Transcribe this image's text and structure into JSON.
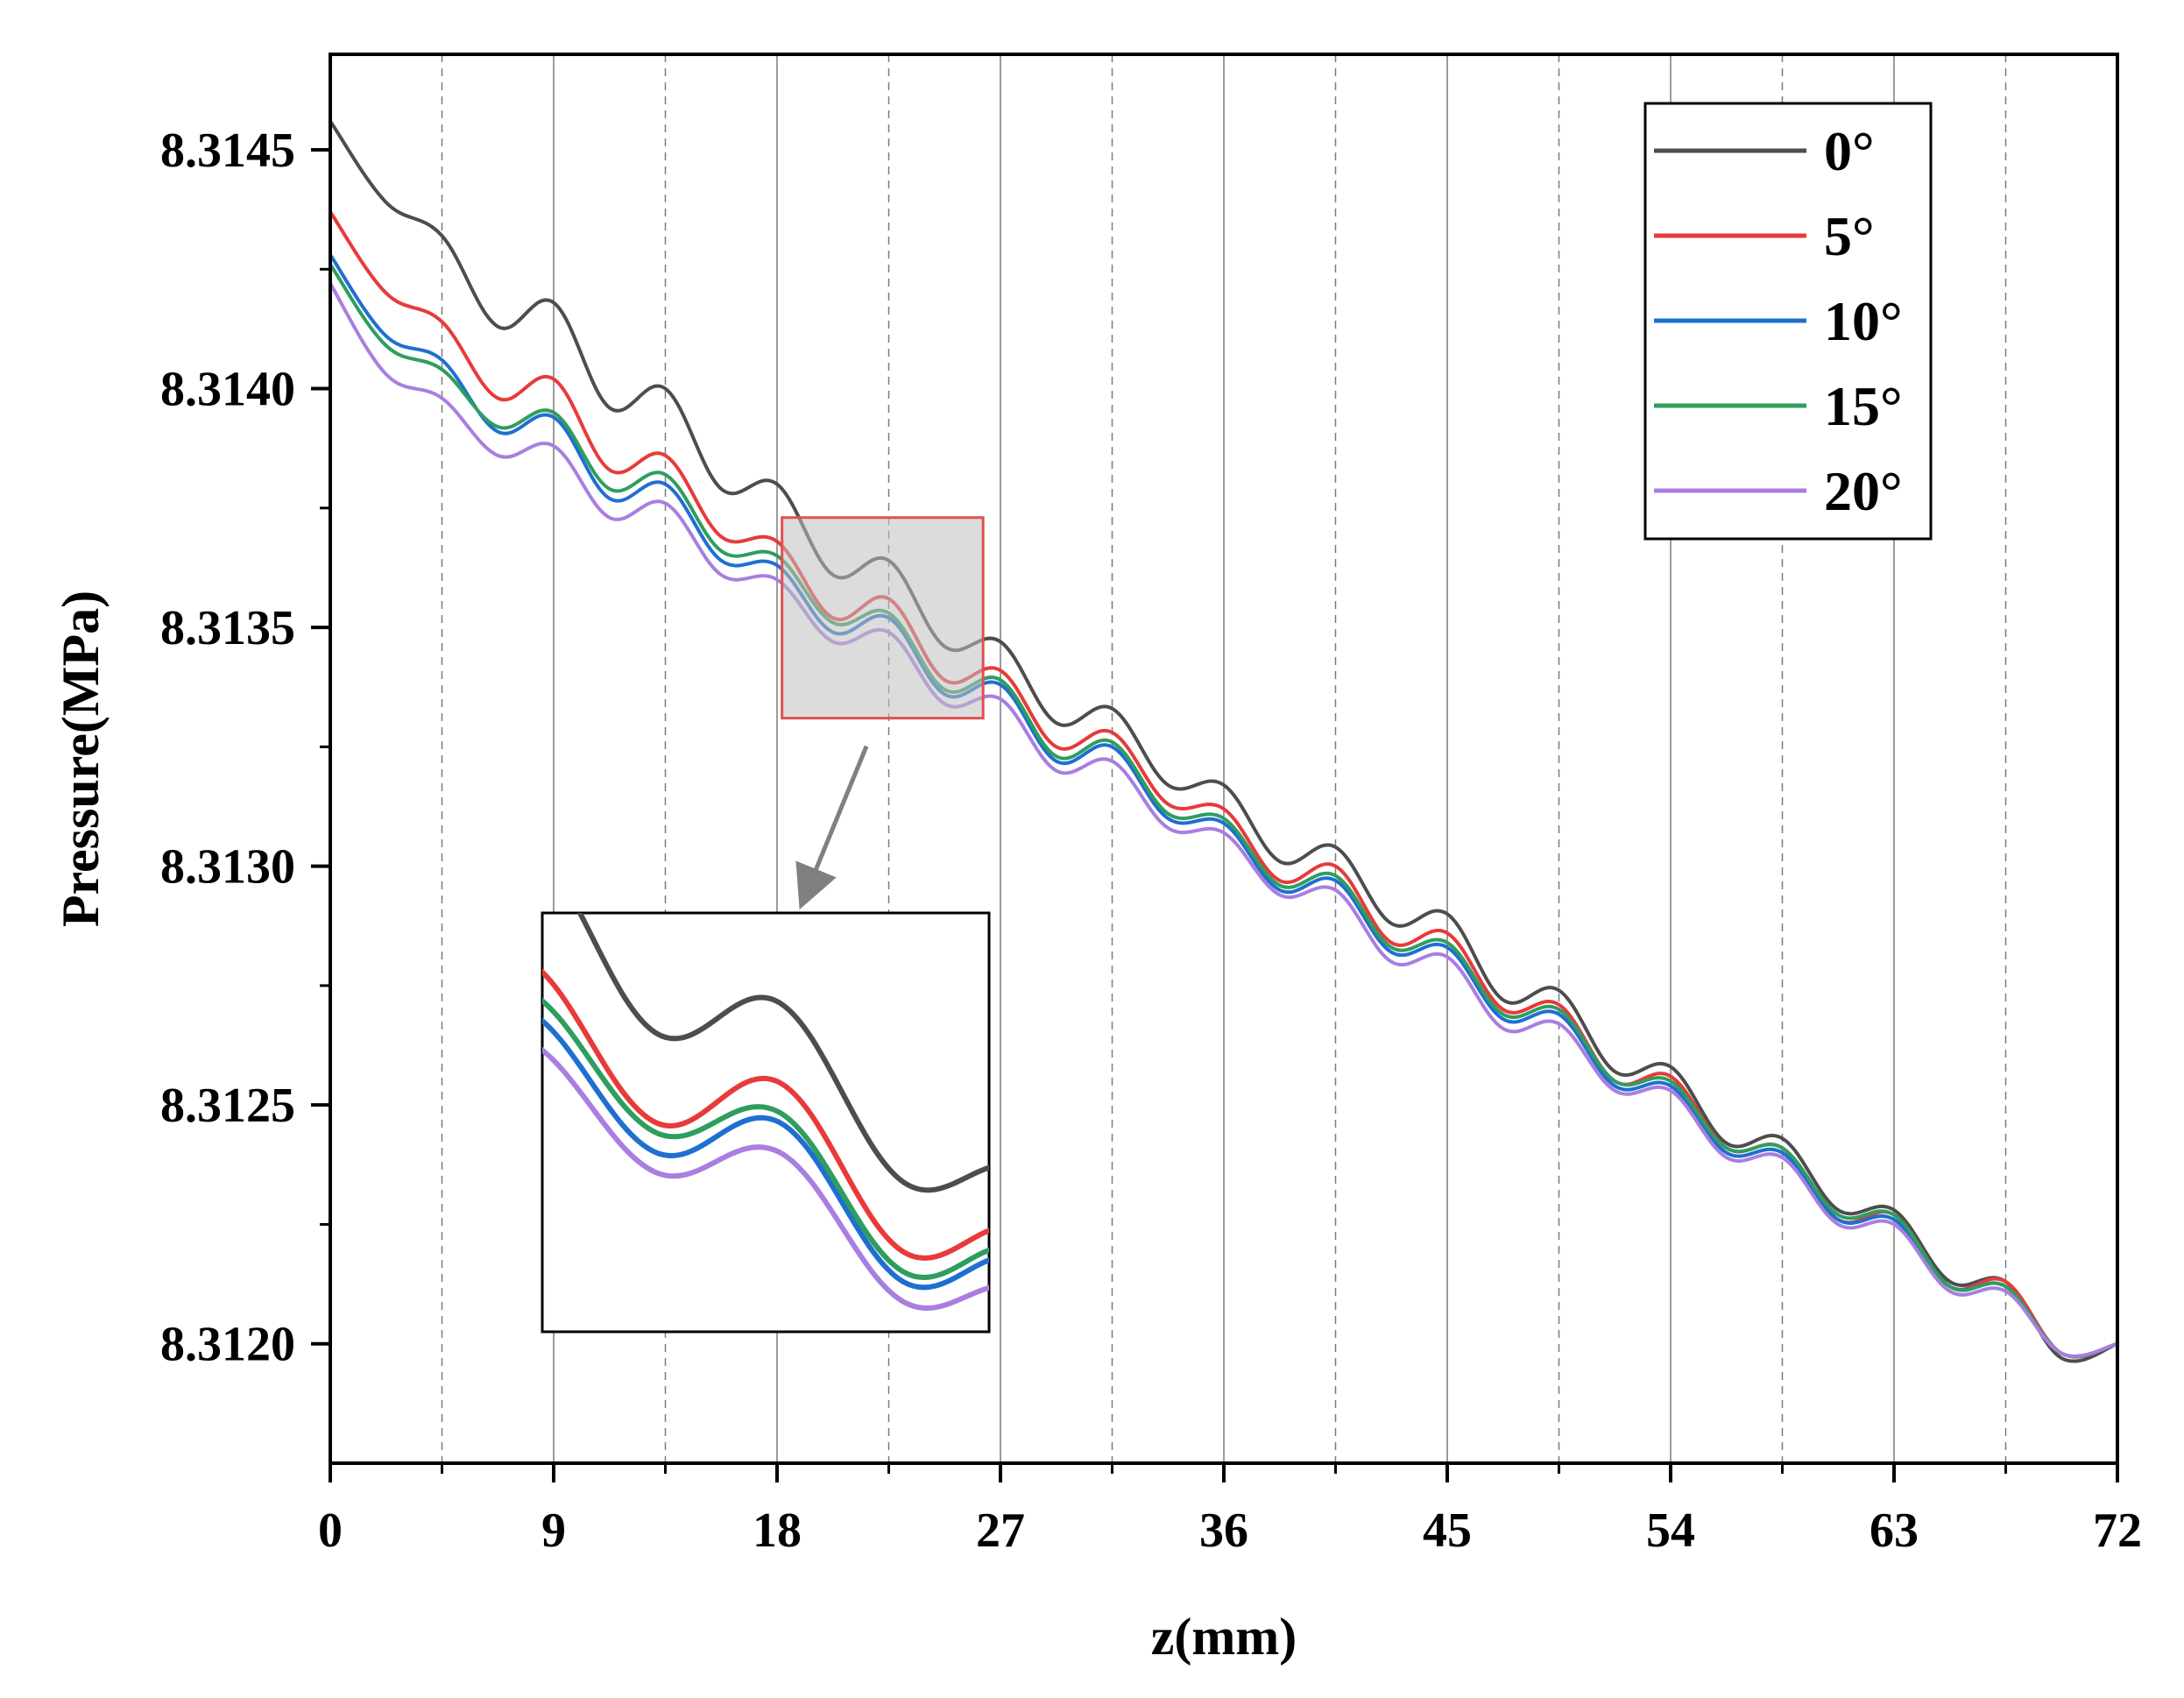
{
  "chart_data": {
    "type": "line",
    "title": "",
    "xlabel": "z(mm)",
    "ylabel": "Pressure(MPa)",
    "xlim": [
      0,
      72
    ],
    "ylim": [
      8.31175,
      8.3147
    ],
    "xticks": [
      0,
      9,
      18,
      27,
      36,
      45,
      54,
      63,
      72
    ],
    "xtick_labels": [
      "0",
      "9",
      "18",
      "27",
      "36",
      "45",
      "54",
      "63",
      "72"
    ],
    "yticks": [
      8.312,
      8.3125,
      8.313,
      8.3135,
      8.314,
      8.3145
    ],
    "ytick_labels": [
      "8.3120",
      "8.3125",
      "8.3130",
      "8.3135",
      "8.3140",
      "8.3145"
    ],
    "grid": {
      "solid_x": [
        9,
        18,
        27,
        36,
        45,
        54,
        63
      ],
      "dashed_x": [
        4.5,
        13.5,
        22.5,
        31.5,
        40.5,
        49.5,
        58.5,
        67.5
      ]
    },
    "legend_position": "top-right",
    "x": [
      0,
      2.25,
      4.5,
      6.75,
      9,
      11.25,
      13.5,
      15.75,
      18,
      20.25,
      22.5,
      24.75,
      27,
      29.25,
      31.5,
      33.75,
      36,
      38.25,
      40.5,
      42.75,
      45,
      47.25,
      49.5,
      51.75,
      54,
      56.25,
      58.5,
      60.75,
      63,
      65.25,
      67.5,
      69.75,
      72
    ],
    "series": [
      {
        "name": "0°",
        "color": "#4d4d4d",
        "values": [
          8.31456,
          8.31439,
          8.31432,
          8.31413,
          8.31418,
          8.31396,
          8.314,
          8.31379,
          8.3138,
          8.31361,
          8.31364,
          8.31346,
          8.31347,
          8.3133,
          8.31333,
          8.31317,
          8.31317,
          8.31301,
          8.31304,
          8.31288,
          8.3129,
          8.31272,
          8.31274,
          8.31257,
          8.31258,
          8.31242,
          8.31243,
          8.31228,
          8.31228,
          8.31213,
          8.31213,
          8.31197,
          8.312
        ]
      },
      {
        "name": "5°",
        "color": "#e83a3a",
        "values": [
          8.31437,
          8.3142,
          8.31414,
          8.31398,
          8.31402,
          8.31383,
          8.31386,
          8.31369,
          8.31368,
          8.31352,
          8.31356,
          8.31339,
          8.31341,
          8.31325,
          8.31328,
          8.31313,
          8.31312,
          8.31297,
          8.313,
          8.31284,
          8.31286,
          8.3127,
          8.31271,
          8.31255,
          8.31256,
          8.31241,
          8.31241,
          8.31226,
          8.31227,
          8.31212,
          8.31213,
          8.31198,
          8.312
        ]
      },
      {
        "name": "10°",
        "color": "#1f6fd1",
        "values": [
          8.31428,
          8.31411,
          8.31406,
          8.31391,
          8.31394,
          8.31377,
          8.3138,
          8.31364,
          8.31363,
          8.31349,
          8.31352,
          8.31336,
          8.31338,
          8.31322,
          8.31325,
          8.3131,
          8.31309,
          8.31295,
          8.31297,
          8.31282,
          8.31283,
          8.31268,
          8.31269,
          8.31254,
          8.31254,
          8.3124,
          8.3124,
          8.31226,
          8.31226,
          8.31212,
          8.31212,
          8.31198,
          8.312
        ]
      },
      {
        "name": "15°",
        "color": "#2e9e5e",
        "values": [
          8.31426,
          8.31409,
          8.31404,
          8.31392,
          8.31395,
          8.31379,
          8.31382,
          8.31366,
          8.31365,
          8.31351,
          8.31353,
          8.31337,
          8.31339,
          8.31323,
          8.31326,
          8.31311,
          8.3131,
          8.31296,
          8.31298,
          8.31283,
          8.31284,
          8.31269,
          8.3127,
          8.31255,
          8.31255,
          8.31241,
          8.31241,
          8.31227,
          8.31227,
          8.31212,
          8.31212,
          8.31198,
          8.312
        ]
      },
      {
        "name": "20°",
        "color": "#a97ee0",
        "values": [
          8.31422,
          8.31403,
          8.31398,
          8.31386,
          8.31388,
          8.31373,
          8.31376,
          8.31361,
          8.3136,
          8.31347,
          8.31349,
          8.31334,
          8.31335,
          8.3132,
          8.31322,
          8.31308,
          8.31307,
          8.31294,
          8.31295,
          8.3128,
          8.31281,
          8.31266,
          8.31267,
          8.31253,
          8.31253,
          8.31239,
          8.31239,
          8.31225,
          8.31225,
          8.31211,
          8.31211,
          8.31198,
          8.312
        ]
      }
    ],
    "inset": {
      "xlim": [
        18.2,
        26.3
      ],
      "ylim": [
        8.31331,
        8.31373
      ],
      "arrow": true
    }
  }
}
